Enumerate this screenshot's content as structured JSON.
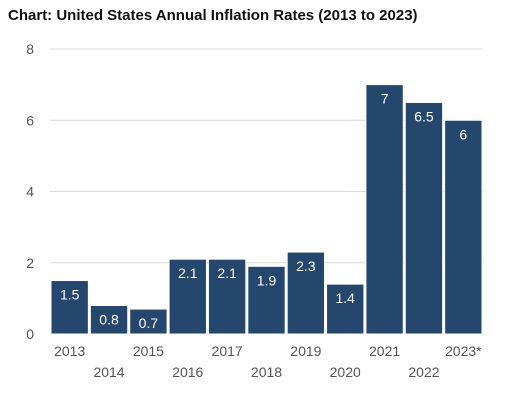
{
  "chart_data": {
    "type": "bar",
    "title": "Chart: United States Annual Inflation Rates (2013 to 2023)",
    "xlabel": "",
    "ylabel": "",
    "categories": [
      "2013",
      "2014",
      "2015",
      "2016",
      "2017",
      "2018",
      "2019",
      "2020",
      "2021",
      "2022",
      "2023*"
    ],
    "values": [
      1.5,
      0.8,
      0.7,
      2.1,
      2.1,
      1.9,
      2.3,
      1.4,
      7,
      6.5,
      6
    ],
    "data_labels": [
      "1.5",
      "0.8",
      "0.7",
      "2.1",
      "2.1",
      "1.9",
      "2.3",
      "1.4",
      "7",
      "6.5",
      "6"
    ],
    "ylim": [
      0,
      8
    ],
    "yticks": [
      "0",
      "2",
      "4",
      "6",
      "8"
    ],
    "grid": true,
    "legend": "none",
    "colors": {
      "bar": "#26476d",
      "bar_stroke": "#ffffff",
      "grid": "#d9d9d9",
      "axis_text": "#555555"
    }
  }
}
